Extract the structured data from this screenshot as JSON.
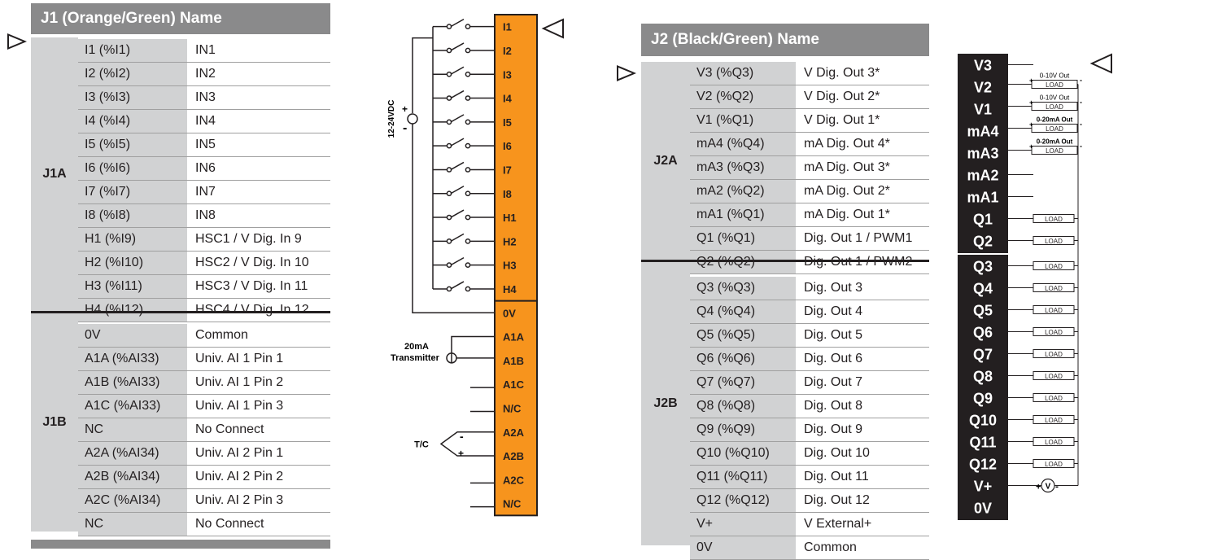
{
  "j1_table": {
    "header": "J1 (Orange/Green) Name",
    "groups": [
      {
        "label": "J1A",
        "rows": [
          [
            "I1 (%I1)",
            "IN1"
          ],
          [
            "I2 (%I2)",
            "IN2"
          ],
          [
            "I3 (%I3)",
            "IN3"
          ],
          [
            "I4 (%I4)",
            "IN4"
          ],
          [
            "I5 (%I5)",
            "IN5"
          ],
          [
            "I6 (%I6)",
            "IN6"
          ],
          [
            "I7 (%I7)",
            "IN7"
          ],
          [
            "I8 (%I8)",
            "IN8"
          ],
          [
            "H1 (%I9)",
            "HSC1 / V Dig. In 9"
          ],
          [
            "H2 (%I10)",
            "HSC2 / V Dig. In 10"
          ],
          [
            "H3 (%I11)",
            "HSC3 / V Dig. In 11"
          ],
          [
            "H4 (%I12)",
            "HSC4 / V Dig. In 12"
          ]
        ]
      },
      {
        "label": "J1B",
        "rows": [
          [
            "0V",
            "Common"
          ],
          [
            "A1A (%AI33)",
            "Univ. AI 1 Pin 1"
          ],
          [
            "A1B (%AI33)",
            "Univ. AI 1 Pin 2"
          ],
          [
            "A1C (%AI33)",
            "Univ. AI 1 Pin 3"
          ],
          [
            "NC",
            "No Connect"
          ],
          [
            "A2A (%AI34)",
            "Univ. AI 2 Pin 1"
          ],
          [
            "A2B (%AI34)",
            "Univ. AI 2 Pin 2"
          ],
          [
            "A2C (%AI34)",
            "Univ. AI 2 Pin 3"
          ],
          [
            "NC",
            "No Connect"
          ]
        ]
      }
    ]
  },
  "j1_diagram": {
    "supply_label": "12-24VDC",
    "plus": "+",
    "minus": "-",
    "terminals": [
      "I1",
      "I2",
      "I3",
      "I4",
      "I5",
      "I6",
      "I7",
      "I8",
      "H1",
      "H2",
      "H3",
      "H4",
      "0V",
      "A1A",
      "A1B",
      "A1C",
      "N/C",
      "A2A",
      "A2B",
      "A2C",
      "N/C"
    ],
    "transmitter_label_1": "20mA",
    "transmitter_label_2": "Transmitter",
    "tc_label": "T/C",
    "tc_plus": "+",
    "tc_minus": "-",
    "terminal_color": "#f7941d"
  },
  "j2_table": {
    "header": "J2 (Black/Green) Name",
    "groups": [
      {
        "label": "J2A",
        "rows": [
          [
            "V3 (%Q3)",
            "V Dig. Out 3*"
          ],
          [
            "V2 (%Q2)",
            "V Dig. Out 2*"
          ],
          [
            "V1 (%Q1)",
            "V Dig. Out 1*"
          ],
          [
            "mA4 (%Q4)",
            "mA Dig. Out 4*"
          ],
          [
            "mA3 (%Q3)",
            "mA Dig. Out 3*"
          ],
          [
            "mA2 (%Q2)",
            "mA Dig. Out 2*"
          ],
          [
            "mA1 (%Q1)",
            "mA Dig. Out 1*"
          ],
          [
            "Q1 (%Q1)",
            "Dig. Out 1 / PWM1"
          ],
          [
            "Q2 (%Q2)",
            "Dig. Out 1 / PWM2"
          ]
        ]
      },
      {
        "label": "J2B",
        "rows": [
          [
            "Q3 (%Q3)",
            "Dig. Out 3"
          ],
          [
            "Q4 (%Q4)",
            "Dig. Out 4"
          ],
          [
            "Q5 (%Q5)",
            "Dig. Out 5"
          ],
          [
            "Q6 (%Q6)",
            "Dig. Out 6"
          ],
          [
            "Q7 (%Q7)",
            "Dig. Out 7"
          ],
          [
            "Q8 (%Q8)",
            "Dig. Out 8"
          ],
          [
            "Q9 (%Q9)",
            "Dig. Out 9"
          ],
          [
            "Q10 (%Q10)",
            "Dig. Out 10"
          ],
          [
            "Q11 (%Q11)",
            "Dig. Out 11"
          ],
          [
            "Q12 (%Q12)",
            "Dig. Out 12"
          ],
          [
            "V+",
            "V External+"
          ],
          [
            "0V",
            "Common"
          ]
        ]
      }
    ]
  },
  "j2_diagram": {
    "terminals": [
      "V3",
      "V2",
      "V1",
      "mA4",
      "mA3",
      "mA2",
      "mA1",
      "Q1",
      "Q2",
      "Q3",
      "Q4",
      "Q5",
      "Q6",
      "Q7",
      "Q8",
      "Q9",
      "Q10",
      "Q11",
      "Q12",
      "V+",
      "0V"
    ],
    "load_label": "LOAD",
    "out_0_10v": "0-10V Out",
    "out_0_20ma": "0-20mA Out",
    "v_symbol": "V",
    "plus": "+",
    "minus": "-"
  }
}
